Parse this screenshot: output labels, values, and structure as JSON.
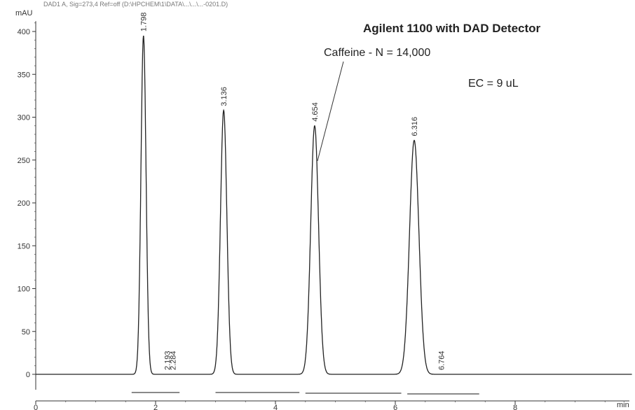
{
  "chart_data": {
    "type": "line",
    "header": "DAD1 A, Sig=273,4 Ref=off (D:\\HPCHEM\\1\\DATA\\...\\...\\...-0201.D)",
    "title": "Agilent 1100 with DAD Detector",
    "annotations": [
      "Caffeine - N = 14,000",
      "EC = 9 uL"
    ],
    "xlabel": "min",
    "ylabel": "mAU",
    "xlim": [
      0,
      10
    ],
    "ylim": [
      -18,
      412
    ],
    "x_ticks": [
      0,
      2,
      4,
      6,
      8
    ],
    "y_ticks": [
      0,
      50,
      100,
      150,
      200,
      250,
      300,
      350,
      400
    ],
    "grid": false,
    "peaks": [
      {
        "label": "1.798",
        "rt": 1.798,
        "height": 395
      },
      {
        "label": "2.193",
        "rt": 2.193,
        "height": 0
      },
      {
        "label": "2.284",
        "rt": 2.284,
        "height": 0
      },
      {
        "label": "3.136",
        "rt": 3.136,
        "height": 308
      },
      {
        "label": "4.654",
        "rt": 4.654,
        "height": 290
      },
      {
        "label": "6.316",
        "rt": 6.316,
        "height": 273
      },
      {
        "label": "6.764",
        "rt": 6.764,
        "height": 0
      }
    ]
  }
}
